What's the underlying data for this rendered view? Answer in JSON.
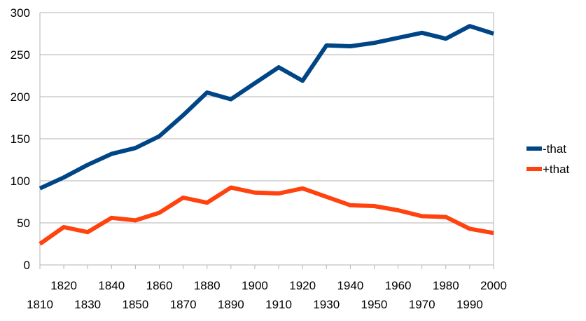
{
  "chart_data": {
    "type": "line",
    "title": "",
    "xlabel": "",
    "ylabel": "",
    "x": [
      1810,
      1820,
      1830,
      1840,
      1850,
      1860,
      1870,
      1880,
      1890,
      1900,
      1910,
      1920,
      1930,
      1940,
      1950,
      1960,
      1970,
      1980,
      1990,
      2000
    ],
    "ylim": [
      0,
      300
    ],
    "yticks": [
      0,
      50,
      100,
      150,
      200,
      250,
      300
    ],
    "xticks_upper": [
      "1820",
      "1840",
      "1860",
      "1880",
      "1900",
      "1920",
      "1940",
      "1960",
      "1980",
      "2000"
    ],
    "xticks_lower": [
      "1810",
      "1830",
      "1850",
      "1870",
      "1890",
      "1910",
      "1930",
      "1950",
      "1970",
      "1990"
    ],
    "grid": true,
    "legend_position": "right",
    "series": [
      {
        "name": "-that",
        "color": "#004586",
        "values": [
          91,
          104,
          119,
          132,
          139,
          153,
          178,
          205,
          197,
          216,
          235,
          219,
          261,
          260,
          264,
          270,
          276,
          269,
          284,
          275
        ]
      },
      {
        "name": "+that",
        "color": "#ff420e",
        "values": [
          25,
          45,
          39,
          56,
          53,
          62,
          80,
          74,
          92,
          86,
          85,
          91,
          81,
          71,
          70,
          65,
          58,
          57,
          43,
          38
        ]
      }
    ]
  }
}
